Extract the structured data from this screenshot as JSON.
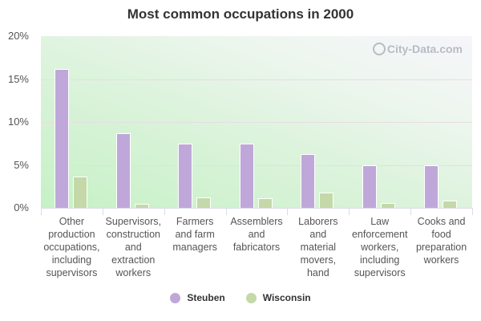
{
  "chart_data": {
    "type": "bar",
    "title": "Most common occupations in 2000",
    "xlabel": "",
    "ylabel": "",
    "ylim": [
      0,
      20
    ],
    "yticks": [
      "0%",
      "5%",
      "10%",
      "15%",
      "20%"
    ],
    "grid": true,
    "legend_position": "bottom",
    "categories": [
      "Other production occupations, including supervisors",
      "Supervisors, construction and extraction workers",
      "Farmers and farm managers",
      "Assemblers and fabricators",
      "Laborers and material movers, hand",
      "Law enforcement workers, including supervisors",
      "Cooks and food preparation workers"
    ],
    "series": [
      {
        "name": "Steuben",
        "color": "#bfa8d9",
        "values": [
          16.2,
          8.7,
          7.5,
          7.5,
          6.3,
          5.0,
          5.0
        ]
      },
      {
        "name": "Wisconsin",
        "color": "#c5d8a8",
        "values": [
          3.6,
          0.5,
          1.2,
          1.1,
          1.8,
          0.6,
          0.8
        ]
      }
    ],
    "watermark": "City-Data.com"
  },
  "labels": {
    "x": [
      [
        "Other",
        "production",
        "occupations,",
        "including",
        "supervisors"
      ],
      [
        "Supervisors,",
        "construction",
        "and",
        "extraction",
        "workers"
      ],
      [
        "Farmers",
        "and farm",
        "managers"
      ],
      [
        "Assemblers",
        "and",
        "fabricators"
      ],
      [
        "Laborers",
        "and",
        "material",
        "movers,",
        "hand"
      ],
      [
        "Law",
        "enforcement",
        "workers,",
        "including",
        "supervisors"
      ],
      [
        "Cooks and",
        "food",
        "preparation",
        "workers"
      ]
    ]
  }
}
